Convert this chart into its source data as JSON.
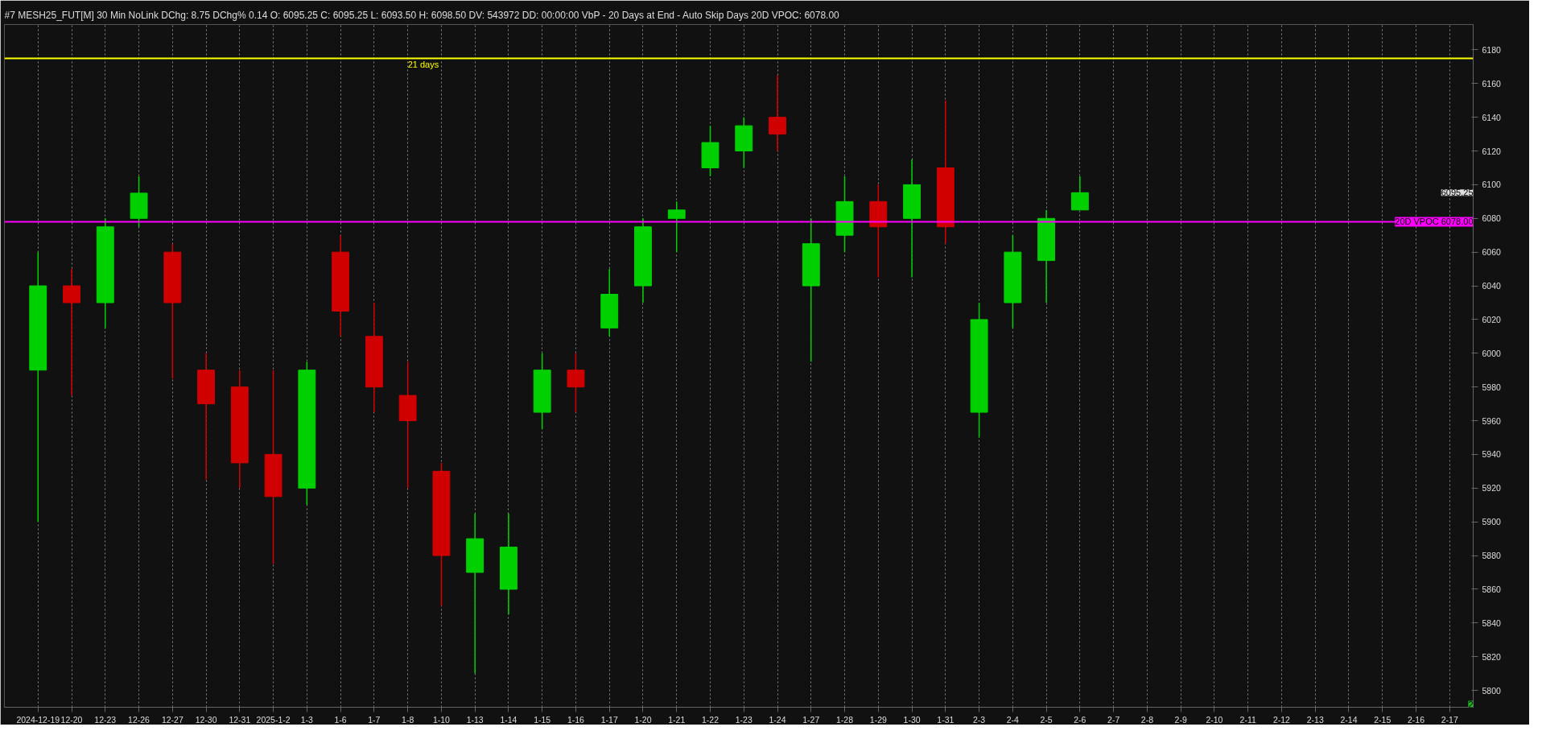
{
  "chart_data": {
    "type": "candlestick",
    "title": "#7 MESH25_FUT[M]  30 Min  NoLink  DChg: 8.75  DChg% 0.14  O: 6095.25  C: 6095.25  L: 6093.50  H: 6098.50  DV: 543972  DD: 00:00:00  VbP - 20 Days at End - Auto Skip Days  20D VPOC: 6078.00",
    "categories": [
      "2024-12-19",
      "12-20",
      "12-23",
      "12-26",
      "12-27",
      "12-30",
      "12-31",
      "2025-1-2",
      "1-3",
      "1-6",
      "1-7",
      "1-8",
      "1-10",
      "1-13",
      "1-14",
      "1-15",
      "1-16",
      "1-17",
      "1-20",
      "1-21",
      "1-22",
      "1-23",
      "1-24",
      "1-27",
      "1-28",
      "1-29",
      "1-30",
      "1-31",
      "2-3",
      "2-4",
      "2-5",
      "2-6",
      "2-7",
      "2-8",
      "2-9",
      "2-10",
      "2-11",
      "2-12",
      "2-13",
      "2-14",
      "2-15",
      "2-16",
      "2-17"
    ],
    "ohlc": [
      [
        5990,
        6060,
        5900,
        6040
      ],
      [
        6040,
        6050,
        5975,
        6030
      ],
      [
        6030,
        6080,
        6015,
        6075
      ],
      [
        6080,
        6105,
        6075,
        6095
      ],
      [
        6060,
        6065,
        5985,
        6030
      ],
      [
        5990,
        6000,
        5925,
        5970
      ],
      [
        5980,
        5990,
        5920,
        5935
      ],
      [
        5940,
        5990,
        5875,
        5915
      ],
      [
        5920,
        5995,
        5910,
        5990
      ],
      [
        6060,
        6070,
        6010,
        6025
      ],
      [
        6010,
        6030,
        5965,
        5980
      ],
      [
        5975,
        5995,
        5920,
        5960
      ],
      [
        5930,
        5935,
        5850,
        5880
      ],
      [
        5870,
        5905,
        5810,
        5890
      ],
      [
        5860,
        5905,
        5845,
        5885
      ],
      [
        5965,
        6000,
        5955,
        5990
      ],
      [
        5990,
        6000,
        5965,
        5980
      ],
      [
        6015,
        6050,
        6010,
        6035
      ],
      [
        6040,
        6080,
        6030,
        6075
      ],
      [
        6080,
        6090,
        6060,
        6085
      ],
      [
        6110,
        6135,
        6105,
        6125
      ],
      [
        6120,
        6140,
        6110,
        6135
      ],
      [
        6140,
        6165,
        6120,
        6130
      ],
      [
        6040,
        6080,
        5995,
        6065
      ],
      [
        6070,
        6105,
        6060,
        6090
      ],
      [
        6090,
        6100,
        6045,
        6075
      ],
      [
        6080,
        6115,
        6045,
        6100
      ],
      [
        6110,
        6150,
        6065,
        6075
      ],
      [
        5965,
        6030,
        5950,
        6020
      ],
      [
        6030,
        6070,
        6015,
        6060
      ],
      [
        6055,
        6085,
        6030,
        6080
      ],
      [
        6085,
        6105,
        6085,
        6095.25
      ],
      null,
      null,
      null,
      null,
      null,
      null,
      null,
      null,
      null,
      null,
      null
    ],
    "colors": [
      "#00d000",
      "#d00000",
      "#00d000",
      "#00d000",
      "#d00000",
      "#d00000",
      "#d00000",
      "#d00000",
      "#00d000",
      "#d00000",
      "#d00000",
      "#d00000",
      "#d00000",
      "#00d000",
      "#00d000",
      "#00d000",
      "#d00000",
      "#00d000",
      "#00d000",
      "#00d000",
      "#00d000",
      "#00d000",
      "#d00000",
      "#00d000",
      "#00d000",
      "#d00000",
      "#00d000",
      "#d00000",
      "#00d000",
      "#00d000",
      "#00d000",
      "#00d000",
      null,
      null,
      null,
      null,
      null,
      null,
      null,
      null,
      null,
      null,
      null
    ],
    "ylim": [
      5790,
      6195
    ],
    "yticks": [
      5800,
      5820,
      5840,
      5860,
      5880,
      5900,
      5920,
      5940,
      5960,
      5980,
      6000,
      6020,
      6040,
      6060,
      6080,
      6100,
      6120,
      6140,
      6160,
      6180
    ],
    "grid": "x",
    "ref_lines": [
      {
        "axis": "y",
        "value": 6175,
        "label": "21 days",
        "color": "#ffff00"
      },
      {
        "axis": "y",
        "value": 6078,
        "label": "20D VPOC 6078.00",
        "color": "#ff00ff"
      }
    ],
    "annotations": [
      "6095.25",
      "2"
    ]
  }
}
